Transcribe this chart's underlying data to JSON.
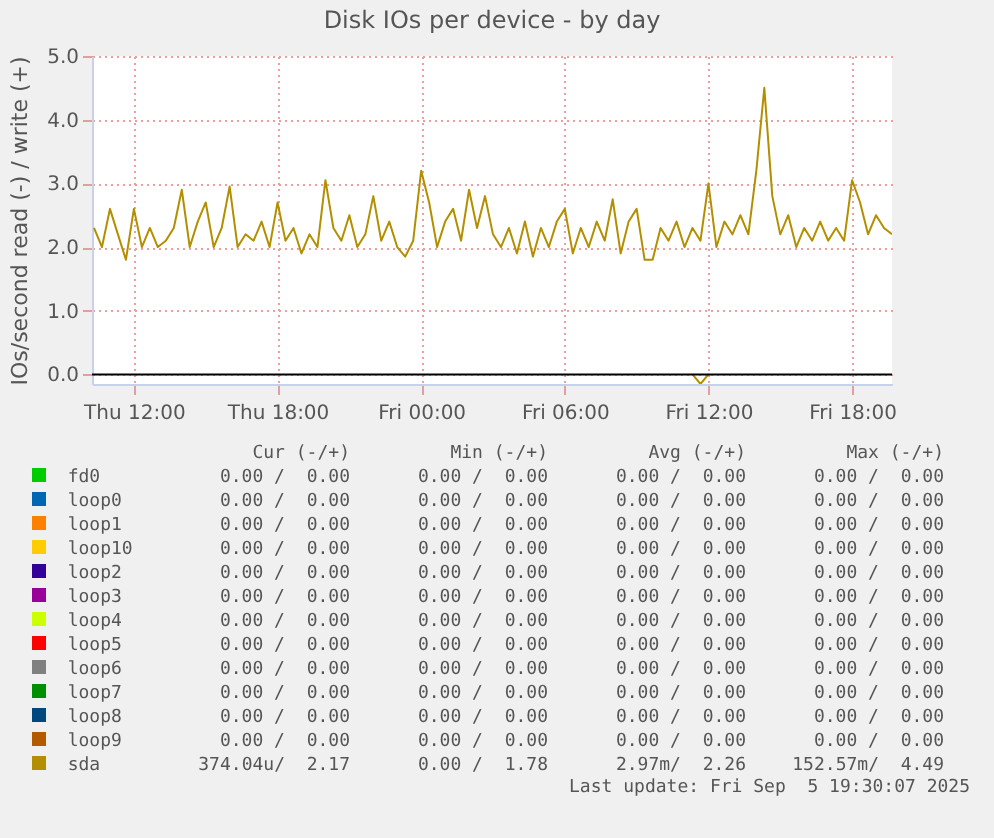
{
  "chart_data": {
    "type": "line",
    "title": "Disk IOs per device - by day",
    "ylabel": "IOs/second read (-) / write (+)",
    "xlim": [
      "2025-09-04T10:15",
      "2025-09-05T19:40"
    ],
    "xticks": [
      {
        "value": "2025-09-04T12:00",
        "label": "Thu 12:00"
      },
      {
        "value": "2025-09-04T18:00",
        "label": "Thu 18:00"
      },
      {
        "value": "2025-09-05T00:00",
        "label": "Fri 00:00"
      },
      {
        "value": "2025-09-05T06:00",
        "label": "Fri 06:00"
      },
      {
        "value": "2025-09-05T12:00",
        "label": "Fri 12:00"
      },
      {
        "value": "2025-09-05T18:00",
        "label": "Fri 18:00"
      }
    ],
    "ylim": [
      -0.15,
      5.0
    ],
    "yticks": [
      {
        "value": 0,
        "label": "0.0"
      },
      {
        "value": 1,
        "label": "1.0"
      },
      {
        "value": 2,
        "label": "2.0"
      },
      {
        "value": 3,
        "label": "3.0"
      },
      {
        "value": 4,
        "label": "4.0"
      },
      {
        "value": 5,
        "label": "5.0"
      }
    ],
    "grid": true,
    "legend": "bottom",
    "ref_lines": [
      {
        "axis": "y",
        "value": 0,
        "color": "#000000"
      }
    ],
    "x": [
      "2025-09-04T10:20",
      "2025-09-04T10:40",
      "2025-09-04T11:00",
      "2025-09-04T11:20",
      "2025-09-04T11:40",
      "2025-09-04T12:00",
      "2025-09-04T12:20",
      "2025-09-04T12:40",
      "2025-09-04T13:00",
      "2025-09-04T13:20",
      "2025-09-04T13:40",
      "2025-09-04T14:00",
      "2025-09-04T14:20",
      "2025-09-04T14:40",
      "2025-09-04T15:00",
      "2025-09-04T15:20",
      "2025-09-04T15:40",
      "2025-09-04T16:00",
      "2025-09-04T16:20",
      "2025-09-04T16:40",
      "2025-09-04T17:00",
      "2025-09-04T17:20",
      "2025-09-04T17:40",
      "2025-09-04T18:00",
      "2025-09-04T18:20",
      "2025-09-04T18:40",
      "2025-09-04T19:00",
      "2025-09-04T19:20",
      "2025-09-04T19:40",
      "2025-09-04T20:00",
      "2025-09-04T20:20",
      "2025-09-04T20:40",
      "2025-09-04T21:00",
      "2025-09-04T21:20",
      "2025-09-04T21:40",
      "2025-09-04T22:00",
      "2025-09-04T22:20",
      "2025-09-04T22:40",
      "2025-09-04T23:00",
      "2025-09-04T23:20",
      "2025-09-04T23:40",
      "2025-09-05T00:00",
      "2025-09-05T00:20",
      "2025-09-05T00:40",
      "2025-09-05T01:00",
      "2025-09-05T01:20",
      "2025-09-05T01:40",
      "2025-09-05T02:00",
      "2025-09-05T02:20",
      "2025-09-05T02:40",
      "2025-09-05T03:00",
      "2025-09-05T03:20",
      "2025-09-05T03:40",
      "2025-09-05T04:00",
      "2025-09-05T04:20",
      "2025-09-05T04:40",
      "2025-09-05T05:00",
      "2025-09-05T05:20",
      "2025-09-05T05:40",
      "2025-09-05T06:00",
      "2025-09-05T06:20",
      "2025-09-05T06:40",
      "2025-09-05T07:00",
      "2025-09-05T07:20",
      "2025-09-05T07:40",
      "2025-09-05T08:00",
      "2025-09-05T08:20",
      "2025-09-05T08:40",
      "2025-09-05T09:00",
      "2025-09-05T09:20",
      "2025-09-05T09:40",
      "2025-09-05T10:00",
      "2025-09-05T10:20",
      "2025-09-05T10:40",
      "2025-09-05T11:00",
      "2025-09-05T11:20",
      "2025-09-05T11:40",
      "2025-09-05T12:00",
      "2025-09-05T12:20",
      "2025-09-05T12:40",
      "2025-09-05T13:00",
      "2025-09-05T13:20",
      "2025-09-05T13:40",
      "2025-09-05T14:00",
      "2025-09-05T14:20",
      "2025-09-05T14:40",
      "2025-09-05T15:00",
      "2025-09-05T15:20",
      "2025-09-05T15:40",
      "2025-09-05T16:00",
      "2025-09-05T16:20",
      "2025-09-05T16:40",
      "2025-09-05T17:00",
      "2025-09-05T17:20",
      "2025-09-05T17:40",
      "2025-09-05T18:00",
      "2025-09-05T18:20",
      "2025-09-05T18:40",
      "2025-09-05T19:00",
      "2025-09-05T19:20",
      "2025-09-05T19:40"
    ],
    "series": [
      {
        "name": "fd0",
        "color": "#00cc00",
        "values": [
          null,
          null,
          null,
          null,
          null,
          null,
          null,
          null,
          null,
          null,
          null,
          null,
          null,
          null,
          null,
          null,
          null,
          null,
          null,
          null,
          null,
          null,
          null,
          null,
          null,
          null,
          null,
          null,
          null,
          null,
          null,
          null,
          null,
          null,
          null,
          null,
          null,
          null,
          null,
          null,
          null,
          null,
          null,
          null,
          null,
          null,
          null,
          null,
          null,
          null,
          null,
          null,
          null,
          null,
          null,
          null,
          null,
          null,
          null,
          null,
          null,
          null,
          null,
          null,
          null,
          null,
          null,
          null,
          null,
          null,
          null,
          null,
          null,
          null,
          null,
          null,
          null,
          null,
          null,
          null,
          null,
          null,
          null,
          null,
          null,
          null,
          null,
          null,
          null,
          null,
          null,
          null,
          null,
          null,
          null,
          null,
          null,
          null,
          null,
          null,
          null
        ]
      },
      {
        "name": "loop0",
        "color": "#0066b3",
        "values": [
          null,
          null,
          null,
          null,
          null,
          null,
          null,
          null,
          null,
          null,
          null,
          null,
          null,
          null,
          null,
          null,
          null,
          null,
          null,
          null,
          null,
          null,
          null,
          null,
          null,
          null,
          null,
          null,
          null,
          null,
          null,
          null,
          null,
          null,
          null,
          null,
          null,
          null,
          null,
          null,
          null,
          null,
          null,
          null,
          null,
          null,
          null,
          null,
          null,
          null,
          null,
          null,
          null,
          null,
          null,
          null,
          null,
          null,
          null,
          null,
          null,
          null,
          null,
          null,
          null,
          null,
          null,
          null,
          null,
          null,
          null,
          null,
          null,
          null,
          null,
          null,
          null,
          null,
          null,
          null,
          null,
          null,
          null,
          null,
          null,
          null,
          null,
          null,
          null,
          null,
          null,
          null,
          null,
          null,
          null,
          null,
          null,
          null,
          null,
          null,
          null
        ]
      },
      {
        "name": "loop1",
        "color": "#ff8000",
        "values": [
          null,
          null,
          null,
          null,
          null,
          null,
          null,
          null,
          null,
          null,
          null,
          null,
          null,
          null,
          null,
          null,
          null,
          null,
          null,
          null,
          null,
          null,
          null,
          null,
          null,
          null,
          null,
          null,
          null,
          null,
          null,
          null,
          null,
          null,
          null,
          null,
          null,
          null,
          null,
          null,
          null,
          null,
          null,
          null,
          null,
          null,
          null,
          null,
          null,
          null,
          null,
          null,
          null,
          null,
          null,
          null,
          null,
          null,
          null,
          null,
          null,
          null,
          null,
          null,
          null,
          null,
          null,
          null,
          null,
          null,
          null,
          null,
          null,
          null,
          null,
          null,
          null,
          null,
          null,
          null,
          null,
          null,
          null,
          null,
          null,
          null,
          null,
          null,
          null,
          null,
          null,
          null,
          null,
          null,
          null,
          null,
          null,
          null,
          null,
          null,
          null
        ]
      },
      {
        "name": "loop10",
        "color": "#ffcc00",
        "values": [
          null,
          null,
          null,
          null,
          null,
          null,
          null,
          null,
          null,
          null,
          null,
          null,
          null,
          null,
          null,
          null,
          null,
          null,
          null,
          null,
          null,
          null,
          null,
          null,
          null,
          null,
          null,
          null,
          null,
          null,
          null,
          null,
          null,
          null,
          null,
          null,
          null,
          null,
          null,
          null,
          null,
          null,
          null,
          null,
          null,
          null,
          null,
          null,
          null,
          null,
          null,
          null,
          null,
          null,
          null,
          null,
          null,
          null,
          null,
          null,
          null,
          null,
          null,
          null,
          null,
          null,
          null,
          null,
          null,
          null,
          null,
          null,
          null,
          null,
          null,
          null,
          null,
          null,
          null,
          null,
          null,
          null,
          null,
          null,
          null,
          null,
          null,
          null,
          null,
          null,
          null,
          null,
          null,
          null,
          null,
          null,
          null,
          null,
          null,
          null,
          null
        ]
      },
      {
        "name": "loop2",
        "color": "#330099",
        "values": [
          null,
          null,
          null,
          null,
          null,
          null,
          null,
          null,
          null,
          null,
          null,
          null,
          null,
          null,
          null,
          null,
          null,
          null,
          null,
          null,
          null,
          null,
          null,
          null,
          null,
          null,
          null,
          null,
          null,
          null,
          null,
          null,
          null,
          null,
          null,
          null,
          null,
          null,
          null,
          null,
          null,
          null,
          null,
          null,
          null,
          null,
          null,
          null,
          null,
          null,
          null,
          null,
          null,
          null,
          null,
          null,
          null,
          null,
          null,
          null,
          null,
          null,
          null,
          null,
          null,
          null,
          null,
          null,
          null,
          null,
          null,
          null,
          null,
          null,
          null,
          null,
          null,
          null,
          null,
          null,
          null,
          null,
          null,
          null,
          null,
          null,
          null,
          null,
          null,
          null,
          null,
          null,
          null,
          null,
          null,
          null,
          null,
          null,
          null,
          null,
          null
        ]
      },
      {
        "name": "loop3",
        "color": "#990099",
        "values": [
          null,
          null,
          null,
          null,
          null,
          null,
          null,
          null,
          null,
          null,
          null,
          null,
          null,
          null,
          null,
          null,
          null,
          null,
          null,
          null,
          null,
          null,
          null,
          null,
          null,
          null,
          null,
          null,
          null,
          null,
          null,
          null,
          null,
          null,
          null,
          null,
          null,
          null,
          null,
          null,
          null,
          null,
          null,
          null,
          null,
          null,
          null,
          null,
          null,
          null,
          null,
          null,
          null,
          null,
          null,
          null,
          null,
          null,
          null,
          null,
          null,
          null,
          null,
          null,
          null,
          null,
          null,
          null,
          null,
          null,
          null,
          null,
          null,
          null,
          null,
          null,
          null,
          null,
          null,
          null,
          null,
          null,
          null,
          null,
          null,
          null,
          null,
          null,
          null,
          null,
          null,
          null,
          null,
          null,
          null,
          null,
          null,
          null,
          null,
          null,
          null
        ]
      },
      {
        "name": "loop4",
        "color": "#ccff00",
        "values": [
          null,
          null,
          null,
          null,
          null,
          null,
          null,
          null,
          null,
          null,
          null,
          null,
          null,
          null,
          null,
          null,
          null,
          null,
          null,
          null,
          null,
          null,
          null,
          null,
          null,
          null,
          null,
          null,
          null,
          null,
          null,
          null,
          null,
          null,
          null,
          null,
          null,
          null,
          null,
          null,
          null,
          null,
          null,
          null,
          null,
          null,
          null,
          null,
          null,
          null,
          null,
          null,
          null,
          null,
          null,
          null,
          null,
          null,
          null,
          null,
          null,
          null,
          null,
          null,
          null,
          null,
          null,
          null,
          null,
          null,
          null,
          null,
          null,
          null,
          null,
          null,
          null,
          null,
          null,
          null,
          null,
          null,
          null,
          null,
          null,
          null,
          null,
          null,
          null,
          null,
          null,
          null,
          null,
          null,
          null,
          null,
          null,
          null,
          null,
          null,
          null
        ]
      },
      {
        "name": "loop5",
        "color": "#ff0000",
        "values": [
          null,
          null,
          null,
          null,
          null,
          null,
          null,
          null,
          null,
          null,
          null,
          null,
          null,
          null,
          null,
          null,
          null,
          null,
          null,
          null,
          null,
          null,
          null,
          null,
          null,
          null,
          null,
          null,
          null,
          null,
          null,
          null,
          null,
          null,
          null,
          null,
          null,
          null,
          null,
          null,
          null,
          null,
          null,
          null,
          null,
          null,
          null,
          null,
          null,
          null,
          null,
          null,
          null,
          null,
          null,
          null,
          null,
          null,
          null,
          null,
          null,
          null,
          null,
          null,
          null,
          null,
          null,
          null,
          null,
          null,
          null,
          null,
          null,
          null,
          null,
          null,
          null,
          null,
          null,
          null,
          null,
          null,
          null,
          null,
          null,
          null,
          null,
          null,
          null,
          null,
          null,
          null,
          null,
          null,
          null,
          null,
          null,
          null,
          null,
          null,
          null
        ]
      },
      {
        "name": "loop6",
        "color": "#808080",
        "values": [
          null,
          null,
          null,
          null,
          null,
          null,
          null,
          null,
          null,
          null,
          null,
          null,
          null,
          null,
          null,
          null,
          null,
          null,
          null,
          null,
          null,
          null,
          null,
          null,
          null,
          null,
          null,
          null,
          null,
          null,
          null,
          null,
          null,
          null,
          null,
          null,
          null,
          null,
          null,
          null,
          null,
          null,
          null,
          null,
          null,
          null,
          null,
          null,
          null,
          null,
          null,
          null,
          null,
          null,
          null,
          null,
          null,
          null,
          null,
          null,
          null,
          null,
          null,
          null,
          null,
          null,
          null,
          null,
          null,
          null,
          null,
          null,
          null,
          null,
          null,
          null,
          null,
          null,
          null,
          null,
          null,
          null,
          null,
          null,
          null,
          null,
          null,
          null,
          null,
          null,
          null,
          null,
          null,
          null,
          null,
          null,
          null,
          null,
          null,
          null,
          null
        ]
      },
      {
        "name": "loop7",
        "color": "#008f00",
        "values": [
          null,
          null,
          null,
          null,
          null,
          null,
          null,
          null,
          null,
          null,
          null,
          null,
          null,
          null,
          null,
          null,
          null,
          null,
          null,
          null,
          null,
          null,
          null,
          null,
          null,
          null,
          null,
          null,
          null,
          null,
          null,
          null,
          null,
          null,
          null,
          null,
          null,
          null,
          null,
          null,
          null,
          null,
          null,
          null,
          null,
          null,
          null,
          null,
          null,
          null,
          null,
          null,
          null,
          null,
          null,
          null,
          null,
          null,
          null,
          null,
          null,
          null,
          null,
          null,
          null,
          null,
          null,
          null,
          null,
          null,
          null,
          null,
          null,
          null,
          null,
          null,
          null,
          null,
          null,
          null,
          null,
          null,
          null,
          null,
          null,
          null,
          null,
          null,
          null,
          null,
          null,
          null,
          null,
          null,
          null,
          null,
          null,
          null,
          null,
          null,
          null
        ]
      },
      {
        "name": "loop8",
        "color": "#00487d",
        "values": [
          null,
          null,
          null,
          null,
          null,
          null,
          null,
          null,
          null,
          null,
          null,
          null,
          null,
          null,
          null,
          null,
          null,
          null,
          null,
          null,
          null,
          null,
          null,
          null,
          null,
          null,
          null,
          null,
          null,
          null,
          null,
          null,
          null,
          null,
          null,
          null,
          null,
          null,
          null,
          null,
          null,
          null,
          null,
          null,
          null,
          null,
          null,
          null,
          null,
          null,
          null,
          null,
          null,
          null,
          null,
          null,
          null,
          null,
          null,
          null,
          null,
          null,
          null,
          null,
          null,
          null,
          null,
          null,
          null,
          null,
          null,
          null,
          null,
          null,
          null,
          null,
          null,
          null,
          null,
          null,
          null,
          null,
          null,
          null,
          null,
          null,
          null,
          null,
          null,
          null,
          null,
          null,
          null,
          null,
          null,
          null,
          null,
          null,
          null,
          null,
          null
        ]
      },
      {
        "name": "loop9",
        "color": "#b35a00",
        "values": [
          null,
          null,
          null,
          null,
          null,
          null,
          null,
          null,
          null,
          null,
          null,
          null,
          null,
          null,
          null,
          null,
          null,
          null,
          null,
          null,
          null,
          null,
          null,
          null,
          null,
          null,
          null,
          null,
          null,
          null,
          null,
          null,
          null,
          null,
          null,
          null,
          null,
          null,
          null,
          null,
          null,
          null,
          null,
          null,
          null,
          null,
          null,
          null,
          null,
          null,
          null,
          null,
          null,
          null,
          null,
          null,
          null,
          null,
          null,
          null,
          null,
          null,
          null,
          null,
          null,
          null,
          null,
          null,
          null,
          null,
          null,
          null,
          null,
          null,
          null,
          null,
          null,
          null,
          null,
          null,
          null,
          null,
          null,
          null,
          null,
          null,
          null,
          null,
          null,
          null,
          null,
          null,
          null,
          null,
          null,
          null,
          null,
          null,
          null,
          null,
          null
        ]
      },
      {
        "name": "sda",
        "color": "#b38f00",
        "values": [
          2.3,
          2.0,
          2.6,
          2.2,
          1.8,
          2.6,
          2.0,
          2.3,
          2.0,
          2.1,
          2.3,
          2.9,
          2.0,
          2.4,
          2.7,
          2.0,
          2.3,
          2.95,
          2.0,
          2.2,
          2.1,
          2.4,
          2.0,
          2.7,
          2.1,
          2.3,
          1.9,
          2.2,
          2.0,
          3.05,
          2.3,
          2.1,
          2.5,
          2.0,
          2.2,
          2.8,
          2.1,
          2.4,
          2.0,
          1.85,
          2.1,
          3.2,
          2.7,
          2.0,
          2.4,
          2.6,
          2.1,
          2.9,
          2.3,
          2.8,
          2.2,
          2.0,
          2.3,
          1.9,
          2.4,
          1.85,
          2.3,
          2.0,
          2.4,
          2.6,
          1.9,
          2.3,
          2.0,
          2.4,
          2.1,
          2.75,
          1.9,
          2.4,
          2.6,
          1.8,
          1.8,
          2.3,
          2.1,
          2.4,
          2.0,
          2.3,
          2.1,
          3.0,
          2.0,
          2.4,
          2.2,
          2.5,
          2.2,
          3.2,
          4.5,
          2.8,
          2.2,
          2.5,
          2.0,
          2.3,
          2.1,
          2.4,
          2.1,
          2.3,
          2.1,
          3.05,
          2.7,
          2.2,
          2.5,
          2.3,
          2.2
        ]
      },
      {
        "color": "#b38f00",
        "x": [
          "2025-09-05T11:20",
          "2025-09-05T11:40",
          "2025-09-05T12:00"
        ],
        "values": [
          0,
          -0.15,
          0
        ]
      }
    ],
    "annotations": [
      "Cur (-/+)",
      "Min (-/+)",
      "Avg (-/+)",
      "Max (-/+)",
      "0.00 /  0.00",
      "0.00 /  0.00",
      "0.00 /  0.00",
      "0.00 /  0.00",
      "0.00 /  0.00",
      "0.00 /  0.00",
      "0.00 /  0.00",
      "0.00 /  0.00",
      "0.00 /  0.00",
      "0.00 /  0.00",
      "0.00 /  0.00",
      "0.00 /  0.00",
      "0.00 /  0.00",
      "0.00 /  0.00",
      "0.00 /  0.00",
      "0.00 /  0.00",
      "0.00 /  0.00",
      "0.00 /  0.00",
      "0.00 /  0.00",
      "0.00 /  0.00",
      "0.00 /  0.00",
      "0.00 /  0.00",
      "0.00 /  0.00",
      "0.00 /  0.00",
      "0.00 /  0.00",
      "0.00 /  0.00",
      "0.00 /  0.00",
      "0.00 /  0.00",
      "0.00 /  0.00",
      "0.00 /  0.00",
      "0.00 /  0.00",
      "0.00 /  0.00",
      "0.00 /  0.00",
      "0.00 /  0.00",
      "0.00 /  0.00",
      "0.00 /  0.00",
      "0.00 /  0.00",
      "0.00 /  0.00",
      "0.00 /  0.00",
      "0.00 /  0.00",
      "0.00 /  0.00",
      "0.00 /  0.00",
      "0.00 /  0.00",
      "0.00 /  0.00",
      "0.00 /  0.00",
      "0.00 /  0.00",
      "0.00 /  0.00",
      "0.00 /  0.00",
      "374.04u/  2.17",
      "0.00 /  1.78",
      "2.97m/  2.26",
      "152.57m/  4.49",
      "Last update: Fri Sep  5 19:30:07 2025"
    ]
  }
}
